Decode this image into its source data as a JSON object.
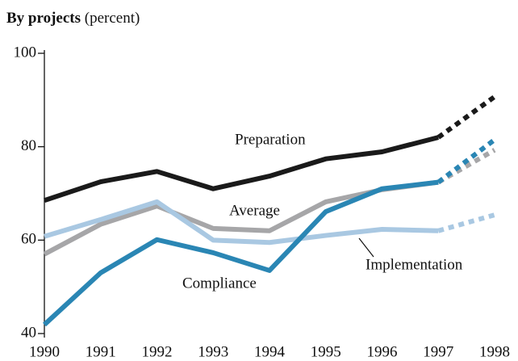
{
  "chart_data": {
    "type": "line",
    "title": "By projects",
    "unit_label": "(percent)",
    "x": [
      1990,
      1991,
      1992,
      1993,
      1994,
      1995,
      1996,
      1997,
      1998
    ],
    "xlim": [
      1990,
      1998
    ],
    "xticks": [
      1990,
      1991,
      1992,
      1993,
      1994,
      1995,
      1996,
      1997,
      1998
    ],
    "ylim": [
      40,
      100
    ],
    "yticks": [
      40,
      60,
      80,
      100
    ],
    "dotted_from": 1997,
    "series": [
      {
        "name": "Preparation",
        "color": "#1a1a1a",
        "values": [
          68.5,
          72.5,
          74.7,
          71,
          73.7,
          77.4,
          78.9,
          82,
          90.7
        ]
      },
      {
        "name": "Average",
        "color": "#a6a6a8",
        "values": [
          57,
          63.4,
          67.3,
          62.5,
          62,
          68.2,
          70.8,
          72.4,
          79.3
        ]
      },
      {
        "name": "Implementation",
        "color": "#a9c8e2",
        "values": [
          60.8,
          64.4,
          68.2,
          60,
          59.5,
          61,
          62.3,
          62,
          65.4
        ]
      },
      {
        "name": "Compliance",
        "color": "#2a86b4",
        "values": [
          41.9,
          53,
          60.1,
          57.3,
          53.5,
          66.1,
          71,
          72.4,
          81.5
        ]
      }
    ]
  }
}
